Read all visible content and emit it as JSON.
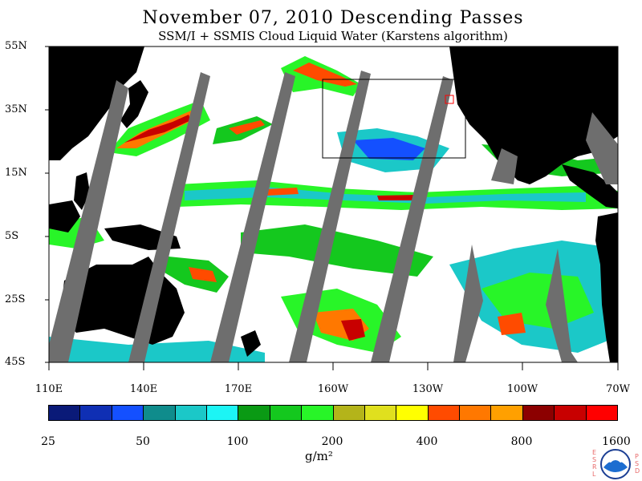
{
  "title": "November 07, 2010  Descending Passes",
  "subtitle": "SSM/I + SSMIS Cloud Liquid Water (Karstens algorithm)",
  "lat_labels": [
    "55N",
    "35N",
    "15N",
    "5S",
    "25S",
    "45S"
  ],
  "lon_labels": [
    "110E",
    "140E",
    "170E",
    "160W",
    "130W",
    "100W",
    "70W"
  ],
  "colorbar": {
    "labels": [
      "25",
      "50",
      "100",
      "200",
      "400",
      "800",
      "1600"
    ],
    "units": "g/m²",
    "colors": [
      "#0a1a78",
      "#0f2fb4",
      "#1450ff",
      "#0f8c8c",
      "#1bc8c8",
      "#1cf5f5",
      "#0a9a14",
      "#14c81e",
      "#28f528",
      "#b4b41a",
      "#e0e01e",
      "#ffff00",
      "#ff4b00",
      "#ff7800",
      "#ffa000",
      "#8c0000",
      "#c80000",
      "#ff0000"
    ]
  },
  "logo": {
    "text": "NOAA",
    "left_letters": [
      "E",
      "S",
      "R",
      "L"
    ],
    "right_letters": [
      "P",
      "S",
      "D"
    ]
  },
  "map_colors": {
    "land": "#000000",
    "no_data_swath": "#6e6e6e",
    "clear_ocean": "#ffffff",
    "box": "#000000",
    "small_box": "#ff0000"
  }
}
